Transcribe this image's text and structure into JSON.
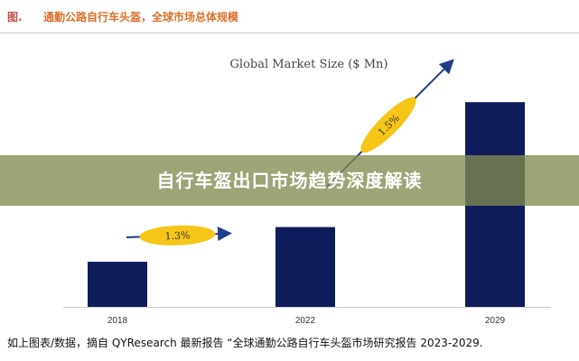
{
  "header": {
    "figure_label": "图.",
    "title": "通勤公路自行车头盔，全球市场总体规模"
  },
  "overlay": {
    "title": "自行车盔出口市场趋势深度解读"
  },
  "caption": "如上图表/数据，摘自 QYResearch 最新报告 “全球通勤公路自行车头盔市场研究报告 2023-2029.",
  "colors": {
    "bar": "#0f1c5c",
    "growth_ellipse": "#f5c518",
    "arrow": "#1f3d8a",
    "overlay": "#828a50",
    "figure_label": "#c0504d",
    "title": "#d9702a"
  },
  "chart_data": {
    "type": "bar",
    "title": "Global Market Size ($ Mn)",
    "xlabel": "",
    "ylabel": "",
    "categories": [
      "2018",
      "2022",
      "2029"
    ],
    "values": [
      74,
      131,
      336
    ],
    "ylim": [
      0,
      400
    ],
    "grid": false,
    "legend": "none",
    "annotations": [
      {
        "text": "1.3%",
        "from": "2018",
        "to": "2022"
      },
      {
        "text": "1.5%",
        "from": "2022",
        "to": "2029"
      }
    ]
  }
}
